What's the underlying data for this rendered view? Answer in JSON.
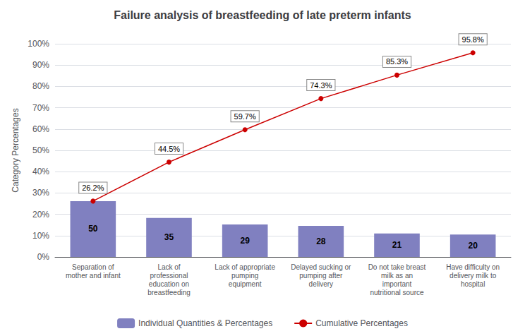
{
  "chart_data": {
    "type": "bar",
    "title": "Failure analysis of breastfeeding of late preterm infants",
    "categories": [
      "Separation of\nmother and infant",
      "Lack of\nprofessional\neducation on\nbreastfeeding",
      "Lack of appropriate\npumping\nequipment",
      "Delayed sucking or\npumping after\ndelivery",
      "Do not take breast\nmilk as an\nimportant\nnutritional source",
      "Have difficulty on\ndelivery milk to\nhospital"
    ],
    "series": [
      {
        "name": "Individual Quantities & Percentages",
        "type": "bar",
        "color": "#8080C0",
        "values": [
          26.2,
          18.3,
          15.2,
          14.6,
          11.0,
          10.5
        ],
        "counts": [
          50,
          35,
          29,
          28,
          21,
          20
        ]
      },
      {
        "name": "Cumulative Percentages",
        "type": "line",
        "color": "#CC0000",
        "marker": "circle",
        "values": [
          26.2,
          44.5,
          59.7,
          74.3,
          85.3,
          95.8
        ],
        "data_labels": true,
        "value_labels": [
          "26.2%",
          "44.5%",
          "59.7%",
          "74.3%",
          "85.3%",
          "95.8%"
        ]
      }
    ],
    "ylabel": "Category Percentages",
    "ylim": [
      0,
      100
    ],
    "yticks": [
      {
        "value": 0,
        "label": "0%"
      },
      {
        "value": 10,
        "label": "10%"
      },
      {
        "value": 20,
        "label": "20%"
      },
      {
        "value": 30,
        "label": "30%"
      },
      {
        "value": 40,
        "label": "40%"
      },
      {
        "value": 50,
        "label": "50%"
      },
      {
        "value": 60,
        "label": "60%"
      },
      {
        "value": 70,
        "label": "70%"
      },
      {
        "value": 80,
        "label": "80%"
      },
      {
        "value": 90,
        "label": "90%"
      },
      {
        "value": 100,
        "label": "100%"
      }
    ],
    "grid": true,
    "legend": "bottom"
  }
}
